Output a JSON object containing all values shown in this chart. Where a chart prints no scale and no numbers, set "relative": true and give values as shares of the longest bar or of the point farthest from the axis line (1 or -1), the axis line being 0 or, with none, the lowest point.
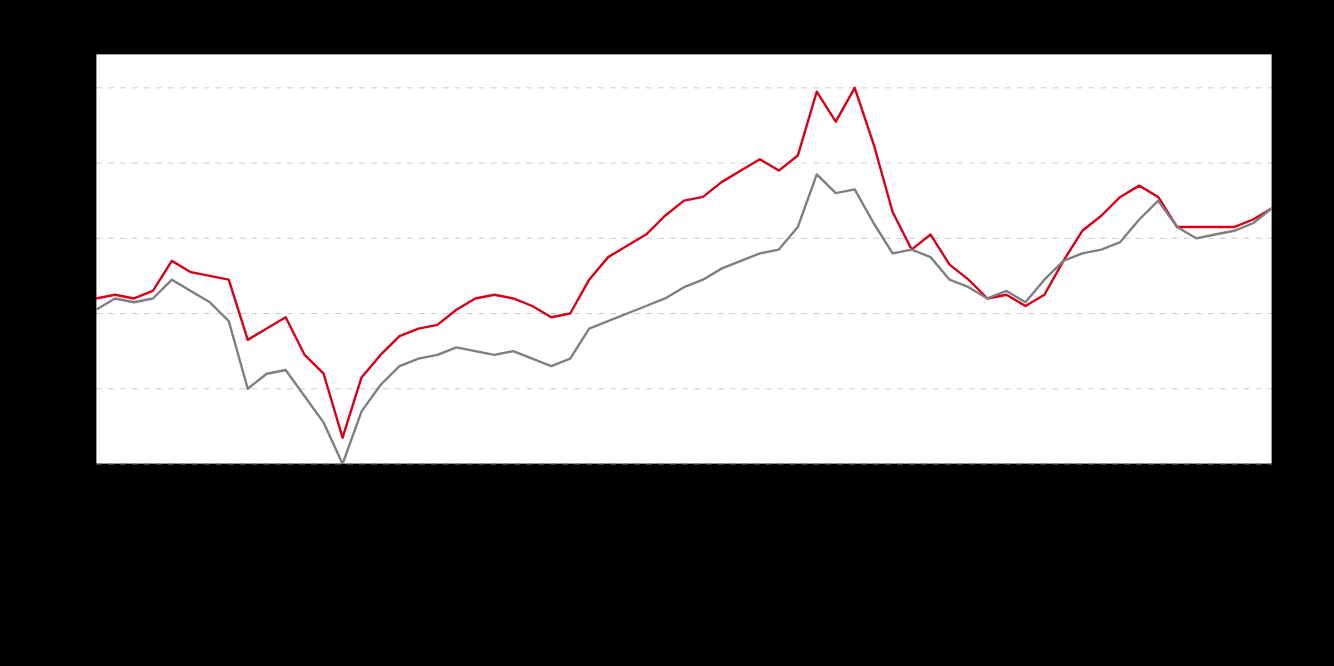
{
  "chart_data": {
    "type": "line",
    "relative": true,
    "grid": "y",
    "tick_labels": false,
    "categories": [
      null,
      null,
      null,
      null,
      null,
      null,
      null,
      null,
      null,
      null,
      null,
      null,
      null,
      null,
      null,
      null,
      null,
      null,
      null,
      null,
      null,
      null,
      null,
      null,
      null,
      null,
      null,
      null,
      null,
      null,
      null,
      null,
      null,
      null,
      null,
      null,
      null,
      null,
      null,
      null,
      null,
      null,
      null,
      null,
      null,
      null,
      null,
      null,
      null,
      null,
      null,
      null,
      null,
      null,
      null,
      null,
      null,
      null,
      null,
      null,
      null,
      null,
      null
    ],
    "series": [
      {
        "color": "#d7001a",
        "values": [
          0.44,
          0.45,
          0.44,
          0.46,
          0.54,
          0.51,
          0.5,
          0.49,
          0.33,
          0.36,
          0.39,
          0.29,
          0.24,
          0.07,
          0.23,
          0.29,
          0.34,
          0.36,
          0.37,
          0.41,
          0.44,
          0.45,
          0.44,
          0.42,
          0.39,
          0.4,
          0.49,
          0.55,
          0.58,
          0.61,
          0.66,
          0.7,
          0.71,
          0.75,
          0.78,
          0.81,
          0.78,
          0.82,
          0.99,
          0.91,
          1.0,
          0.85,
          0.67,
          0.57,
          0.61,
          0.53,
          0.49,
          0.44,
          0.45,
          0.42,
          0.45,
          0.54,
          0.62,
          0.66,
          0.71,
          0.74,
          0.71,
          0.63,
          0.63,
          0.63,
          0.63,
          0.65,
          0.68
        ]
      },
      {
        "color": "#7f7f7f",
        "values": [
          0.41,
          0.44,
          0.43,
          0.44,
          0.49,
          0.46,
          0.43,
          0.38,
          0.2,
          0.24,
          0.25,
          0.18,
          0.11,
          0.0,
          0.14,
          0.21,
          0.26,
          0.28,
          0.29,
          0.31,
          0.3,
          0.29,
          0.3,
          0.28,
          0.26,
          0.28,
          0.36,
          0.38,
          0.4,
          0.42,
          0.44,
          0.47,
          0.49,
          0.52,
          0.54,
          0.56,
          0.57,
          0.63,
          0.77,
          0.72,
          0.73,
          0.64,
          0.56,
          0.57,
          0.55,
          0.49,
          0.47,
          0.44,
          0.46,
          0.43,
          0.49,
          0.54,
          0.56,
          0.57,
          0.59,
          0.65,
          0.7,
          0.63,
          0.6,
          0.61,
          0.62,
          0.64,
          0.68
        ]
      }
    ]
  }
}
